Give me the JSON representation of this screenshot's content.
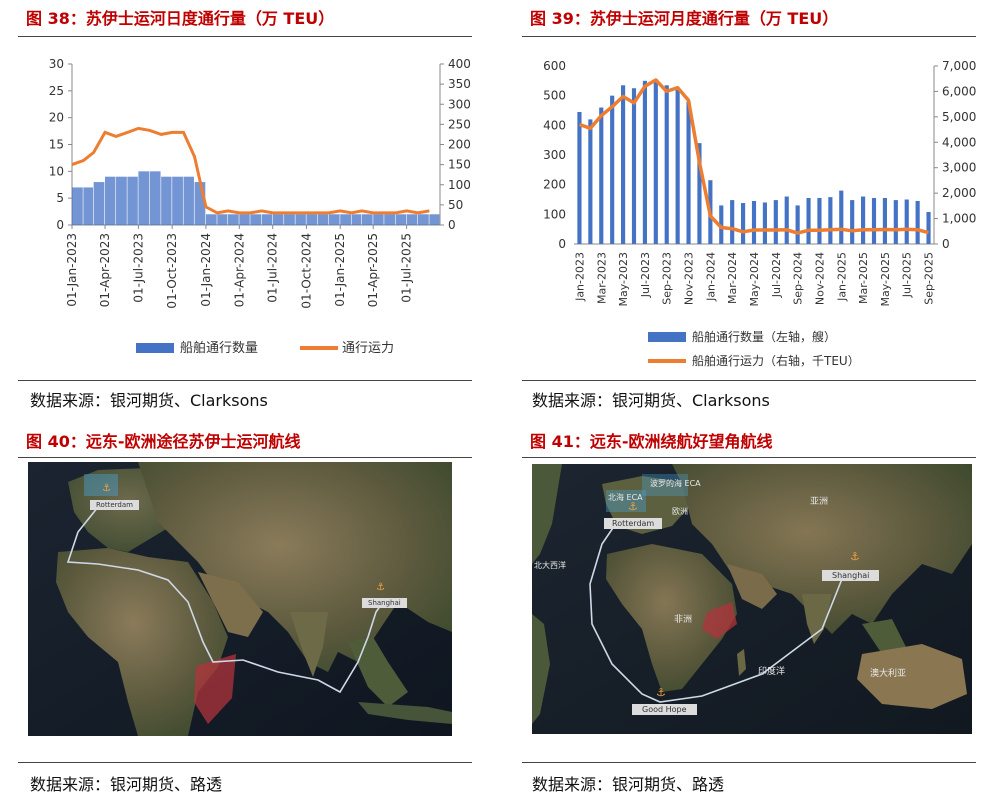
{
  "fig38": {
    "title": "图 38：苏伊士运河日度通行量（万 TEU）",
    "source": "数据来源：银河期货、Clarksons",
    "chart_data": {
      "type": "bar+line",
      "x_ticks": [
        "01-Jan-2023",
        "01-Apr-2023",
        "01-Jul-2023",
        "01-Oct-2023",
        "01-Jan-2024",
        "01-Apr-2024",
        "01-Jul-2024",
        "01-Oct-2024",
        "01-Jan-2025",
        "01-Apr-2025",
        "01-Jul-2025"
      ],
      "x_range": [
        "2023-01-01",
        "2025-09-30"
      ],
      "y_left": {
        "min": 0,
        "max": 30,
        "ticks": [
          0,
          5,
          10,
          15,
          20,
          25,
          30
        ]
      },
      "y_right": {
        "min": 0,
        "max": 400,
        "ticks": [
          0,
          50,
          100,
          150,
          200,
          250,
          300,
          350,
          400
        ]
      },
      "legend_position": "bottom",
      "series": [
        {
          "name": "船舶通行数量",
          "type": "bar",
          "axis": "left",
          "color": "#4472c4",
          "points": [
            [
              "2023-01-01",
              7
            ],
            [
              "2023-02-01",
              7
            ],
            [
              "2023-03-01",
              8
            ],
            [
              "2023-04-01",
              9
            ],
            [
              "2023-05-01",
              9
            ],
            [
              "2023-06-01",
              9
            ],
            [
              "2023-07-01",
              10
            ],
            [
              "2023-08-01",
              10
            ],
            [
              "2023-09-01",
              9
            ],
            [
              "2023-10-01",
              9
            ],
            [
              "2023-11-01",
              9
            ],
            [
              "2023-12-01",
              8
            ],
            [
              "2024-01-01",
              2
            ],
            [
              "2024-02-01",
              2
            ],
            [
              "2024-03-01",
              2
            ],
            [
              "2024-04-01",
              2
            ],
            [
              "2024-05-01",
              2
            ],
            [
              "2024-06-01",
              2
            ],
            [
              "2024-07-01",
              2
            ],
            [
              "2024-08-01",
              2
            ],
            [
              "2024-09-01",
              2
            ],
            [
              "2024-10-01",
              2
            ],
            [
              "2024-11-01",
              2
            ],
            [
              "2024-12-01",
              2
            ],
            [
              "2025-01-01",
              2
            ],
            [
              "2025-02-01",
              2
            ],
            [
              "2025-03-01",
              2
            ],
            [
              "2025-04-01",
              2
            ],
            [
              "2025-05-01",
              2
            ],
            [
              "2025-06-01",
              2
            ],
            [
              "2025-07-01",
              2
            ],
            [
              "2025-08-01",
              2
            ],
            [
              "2025-09-01",
              2
            ]
          ]
        },
        {
          "name": "通行运力",
          "type": "line",
          "axis": "right",
          "color": "#ed7d31",
          "points": [
            [
              "2023-01-01",
              150
            ],
            [
              "2023-02-01",
              160
            ],
            [
              "2023-03-01",
              180
            ],
            [
              "2023-04-01",
              230
            ],
            [
              "2023-05-01",
              220
            ],
            [
              "2023-06-01",
              230
            ],
            [
              "2023-07-01",
              240
            ],
            [
              "2023-08-01",
              235
            ],
            [
              "2023-09-01",
              225
            ],
            [
              "2023-10-01",
              230
            ],
            [
              "2023-11-01",
              230
            ],
            [
              "2023-12-01",
              170
            ],
            [
              "2024-01-01",
              45
            ],
            [
              "2024-02-01",
              30
            ],
            [
              "2024-03-01",
              35
            ],
            [
              "2024-04-01",
              30
            ],
            [
              "2024-05-01",
              30
            ],
            [
              "2024-06-01",
              35
            ],
            [
              "2024-07-01",
              30
            ],
            [
              "2024-08-01",
              30
            ],
            [
              "2024-09-01",
              30
            ],
            [
              "2024-10-01",
              30
            ],
            [
              "2024-11-01",
              30
            ],
            [
              "2024-12-01",
              30
            ],
            [
              "2025-01-01",
              35
            ],
            [
              "2025-02-01",
              30
            ],
            [
              "2025-03-01",
              35
            ],
            [
              "2025-04-01",
              30
            ],
            [
              "2025-05-01",
              30
            ],
            [
              "2025-06-01",
              30
            ],
            [
              "2025-07-01",
              35
            ],
            [
              "2025-08-01",
              30
            ],
            [
              "2025-09-01",
              35
            ]
          ]
        }
      ]
    }
  },
  "fig39": {
    "title": "图 39：苏伊士运河月度通行量（万 TEU）",
    "source": "数据来源：银河期货、Clarksons",
    "chart_data": {
      "type": "bar+line",
      "categories": [
        "Jan-2023",
        "Feb-2023",
        "Mar-2023",
        "Apr-2023",
        "May-2023",
        "Jun-2023",
        "Jul-2023",
        "Aug-2023",
        "Sep-2023",
        "Oct-2023",
        "Nov-2023",
        "Dec-2023",
        "Jan-2024",
        "Feb-2024",
        "Mar-2024",
        "Apr-2024",
        "May-2024",
        "Jun-2024",
        "Jul-2024",
        "Aug-2024",
        "Sep-2024",
        "Oct-2024",
        "Nov-2024",
        "Dec-2024",
        "Jan-2025",
        "Feb-2025",
        "Mar-2025",
        "Apr-2025",
        "May-2025",
        "Jun-2025",
        "Jul-2025",
        "Aug-2025",
        "Sep-2025"
      ],
      "tick_labels": [
        "Jan-2023",
        "Mar-2023",
        "May-2023",
        "Jul-2023",
        "Sep-2023",
        "Nov-2023",
        "Jan-2024",
        "Mar-2024",
        "May-2024",
        "Jul-2024",
        "Sep-2024",
        "Nov-2024",
        "Jan-2025",
        "Mar-2025",
        "May-2025",
        "Jul-2025",
        "Sep-2025"
      ],
      "y_left": {
        "min": 0,
        "max": 600,
        "ticks": [
          "0",
          "100",
          "200",
          "300",
          "400",
          "500",
          "600"
        ]
      },
      "y_right": {
        "min": 0,
        "max": 7000,
        "ticks": [
          "0",
          "1,000",
          "2,000",
          "3,000",
          "4,000",
          "5,000",
          "6,000",
          "7,000"
        ]
      },
      "legend_position": "bottom",
      "series": [
        {
          "name": "船舶通行数量（左轴，艘）",
          "type": "bar",
          "axis": "left",
          "color": "#4472c4",
          "values": [
            445,
            420,
            460,
            500,
            535,
            525,
            550,
            555,
            535,
            520,
            480,
            340,
            215,
            130,
            148,
            138,
            145,
            140,
            148,
            160,
            130,
            155,
            155,
            158,
            180,
            148,
            160,
            155,
            155,
            148,
            150,
            145,
            108
          ]
        },
        {
          "name": "船舶通行运力（右轴，千TEU）",
          "type": "line",
          "axis": "right",
          "color": "#ed7d31",
          "values": [
            4700,
            4550,
            5050,
            5400,
            5800,
            5550,
            6200,
            6450,
            6000,
            6150,
            5650,
            3200,
            1100,
            650,
            600,
            480,
            550,
            550,
            550,
            560,
            430,
            540,
            540,
            560,
            580,
            520,
            560,
            560,
            570,
            560,
            580,
            560,
            450
          ]
        }
      ]
    }
  },
  "fig40": {
    "title": "图 40：远东-欧洲途径苏伊士运河航线",
    "source": "数据来源：银河期货、路透",
    "labels": {
      "rotterdam": "Rotterdam",
      "shanghai": "Shanghai"
    }
  },
  "fig41": {
    "title": "图 41：远东-欧洲绕航好望角航线",
    "source": "数据来源：银河期货、路透",
    "labels": {
      "rotterdam": "Rotterdam",
      "shanghai": "Shanghai",
      "good_hope": "Good Hope",
      "north_sea": "北海 ECA",
      "baltic": "波罗的海 ECA",
      "europe": "欧洲",
      "asia": "亚洲",
      "africa": "非洲",
      "australia": "澳大利亚",
      "indian_ocean": "印度洋",
      "north_atlantic": "北大西洋"
    }
  },
  "colors": {
    "title": "#c00000",
    "bar": "#4472c4",
    "line": "#ed7d31",
    "rule": "#444444"
  }
}
